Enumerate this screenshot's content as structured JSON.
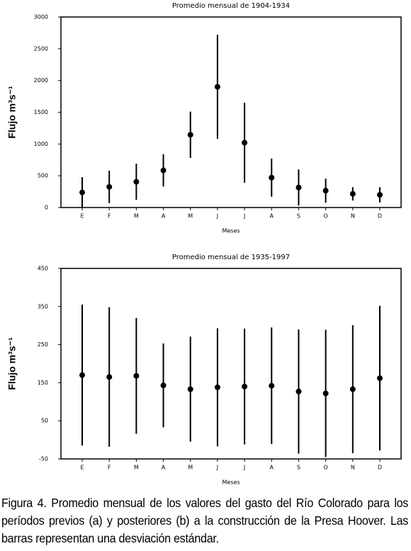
{
  "chart_data": [
    {
      "type": "errorbar",
      "title": "Promedio mensual de 1904-1934",
      "x_label": "Meses",
      "y_label": "Flujo m³s⁻¹",
      "categories": [
        "E",
        "F",
        "M",
        "A",
        "M",
        "J",
        "J",
        "A",
        "S",
        "O",
        "N",
        "D"
      ],
      "values": [
        238,
        325,
        405,
        585,
        1145,
        1900,
        1020,
        470,
        315,
        265,
        215,
        200
      ],
      "errors": [
        240,
        255,
        285,
        255,
        365,
        820,
        630,
        300,
        285,
        190,
        105,
        120
      ],
      "color": "#000000",
      "ylim": [
        0,
        3000
      ],
      "yticks": [
        0,
        500,
        1000,
        1500,
        2000,
        2500,
        3000
      ]
    },
    {
      "type": "errorbar",
      "title": "Promedio mensual de 1935-1997",
      "x_label": "Meses",
      "y_label": "Flujo m³s⁻¹",
      "categories": [
        "E",
        "F",
        "M",
        "A",
        "M",
        "J",
        "J",
        "A",
        "S",
        "O",
        "N",
        "D"
      ],
      "values": [
        170,
        165,
        168,
        143,
        133,
        138,
        140,
        142,
        127,
        122,
        133,
        162
      ],
      "errors": [
        185,
        183,
        152,
        110,
        138,
        155,
        152,
        153,
        163,
        167,
        168,
        190
      ],
      "color": "#000000",
      "ylim": [
        -50,
        450
      ],
      "yticks": [
        -50,
        50,
        150,
        250,
        350,
        450
      ]
    }
  ],
  "caption": "Figura 4. Promedio mensual de los valores del gasto del Río Colorado para los períodos previos (a) y posteriores (b) a la construcción de la Presa Hoover. Las barras representan una desviación estándar."
}
